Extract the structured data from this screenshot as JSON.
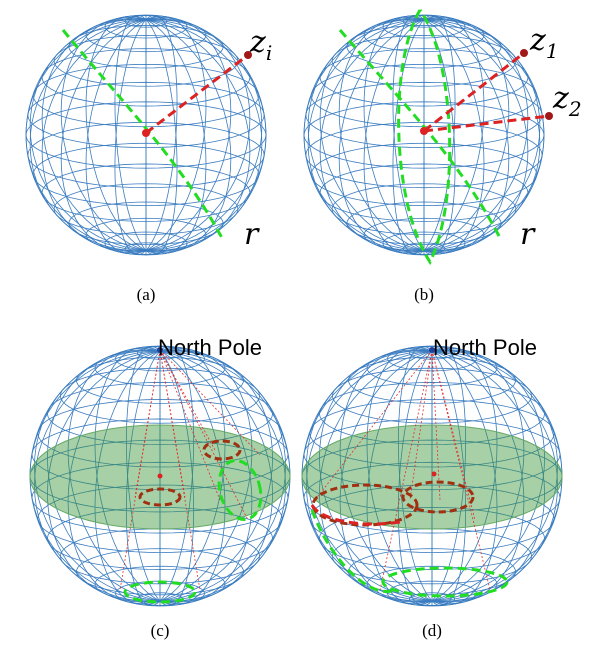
{
  "panels": [
    {
      "caption": "(a)",
      "labels": [
        {
          "base": "z",
          "sub": "i"
        },
        {
          "base": "r"
        }
      ]
    },
    {
      "caption": "(b)",
      "labels": [
        {
          "base": "z",
          "sub": "1"
        },
        {
          "base": "z",
          "sub": "2"
        },
        {
          "base": "r"
        }
      ]
    },
    {
      "caption": "(c)",
      "pole_label": "North Pole"
    },
    {
      "caption": "(d)",
      "pole_label": "North Pole"
    }
  ]
}
